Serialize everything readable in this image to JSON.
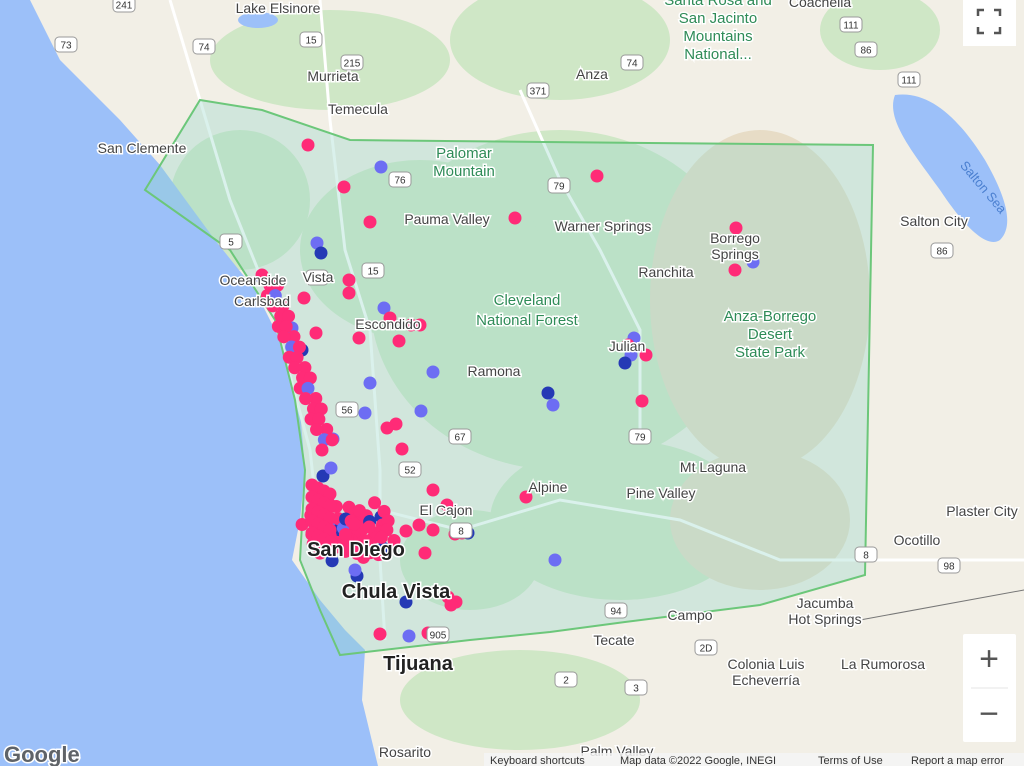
{
  "map": {
    "places": [
      "Lake Elsinore",
      "Murrieta",
      "Anza",
      "Temecula",
      "San Clemente",
      "Pauma Valley",
      "Warner Springs",
      "Ranchita",
      "Oceanside",
      "Vista",
      "Carlsbad",
      "Escondido",
      "Ramona",
      "Julian",
      "Mt Laguna",
      "Alpine",
      "Pine Valley",
      "El Cajon",
      "Salton City",
      "Plaster City",
      "Ocotillo",
      "Campo",
      "Tecate",
      "Colonia Luis",
      "Echeverría",
      "La Rumorosa",
      "Rosarito",
      "Palm Valley",
      "Borrego",
      "Springs",
      "Jacumba",
      "Hot Springs",
      "Coachella"
    ],
    "major_places": [
      "San Diego",
      "Chula Vista",
      "Tijuana"
    ],
    "parks": [
      "Palomar",
      "Mountain",
      "Cleveland",
      "National Forest",
      "Anza-Borrego",
      "Desert",
      "State Park",
      "Santa Rosa and",
      "San Jacinto",
      "Mountains",
      "National..."
    ],
    "water": [
      "Salton Sea"
    ],
    "roads": [
      "241",
      "74",
      "73",
      "215",
      "15",
      "371",
      "74",
      "79",
      "76",
      "5",
      "78",
      "15",
      "56",
      "67",
      "52",
      "8",
      "94",
      "905",
      "111",
      "86",
      "111",
      "86",
      "98",
      "8",
      "2D",
      "2",
      "3",
      "79"
    ]
  },
  "controls": {
    "zoom_in": "+",
    "zoom_out": "−",
    "logo": "Google"
  },
  "footer": [
    "Keyboard shortcuts",
    "Map data ©2022 Google, INEGI",
    "Terms of Use",
    "Report a map error"
  ]
}
